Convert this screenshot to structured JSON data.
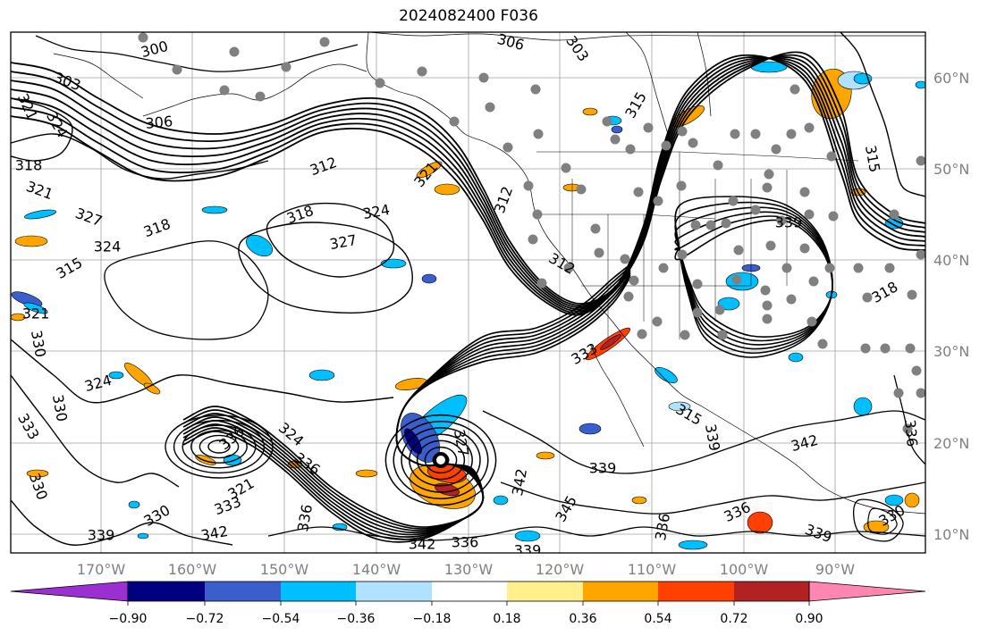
{
  "title": "2024082400 F036",
  "lon_labels": [
    "170°W",
    "160°W",
    "150°W",
    "140°W",
    "130°W",
    "120°W",
    "110°W",
    "100°W",
    "90°W"
  ],
  "lat_labels": [
    "60°N",
    "50°N",
    "40°N",
    "30°N",
    "20°N",
    "10°N"
  ],
  "contour_labels": [
    "300",
    "306",
    "303",
    "303",
    "306",
    "321",
    "324",
    "318",
    "321",
    "327",
    "318",
    "324",
    "315",
    "321",
    "330",
    "324",
    "330",
    "333",
    "312",
    "321",
    "318",
    "324",
    "327",
    "315",
    "312",
    "312",
    "333",
    "315",
    "339",
    "318",
    "315",
    "339",
    "342",
    "336",
    "330",
    "330",
    "339",
    "342",
    "336",
    "336",
    "342",
    "336",
    "342",
    "345",
    "339",
    "336",
    "336",
    "339",
    "339",
    "336",
    "333",
    "321",
    "324",
    "327",
    "330"
  ],
  "colorbar": {
    "ticks": [
      "−0.90",
      "−0.72",
      "−0.54",
      "−0.36",
      "−0.18",
      "0.18",
      "0.36",
      "0.54",
      "0.72",
      "0.90"
    ],
    "colors": [
      "#9b30d0",
      "#000080",
      "#3a5fcd",
      "#00bfff",
      "#b0e2ff",
      "#ffffff",
      "#fff08c",
      "#ffa500",
      "#ff4000",
      "#b22222",
      "#ff86b0"
    ]
  },
  "colors": {
    "contour": "#000000",
    "grid": "#a0a0a0",
    "station_dot": "#808080",
    "negative_fill": "#00bfff",
    "positive_fill": "#ffa500"
  }
}
